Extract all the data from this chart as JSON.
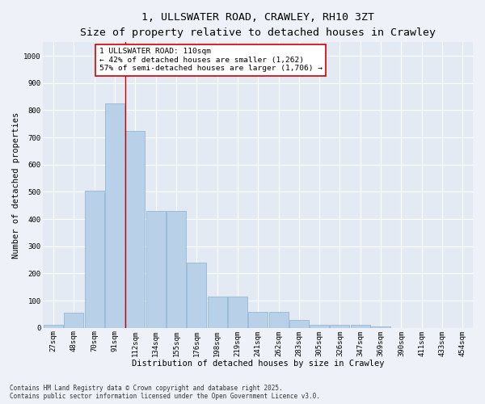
{
  "title_line1": "1, ULLSWATER ROAD, CRAWLEY, RH10 3ZT",
  "title_line2": "Size of property relative to detached houses in Crawley",
  "xlabel": "Distribution of detached houses by size in Crawley",
  "ylabel": "Number of detached properties",
  "categories": [
    "27sqm",
    "48sqm",
    "70sqm",
    "91sqm",
    "112sqm",
    "134sqm",
    "155sqm",
    "176sqm",
    "198sqm",
    "219sqm",
    "241sqm",
    "262sqm",
    "283sqm",
    "305sqm",
    "326sqm",
    "347sqm",
    "369sqm",
    "390sqm",
    "411sqm",
    "433sqm",
    "454sqm"
  ],
  "values": [
    10,
    55,
    505,
    825,
    725,
    430,
    430,
    240,
    115,
    115,
    60,
    60,
    30,
    10,
    10,
    10,
    5,
    0,
    0,
    0,
    0
  ],
  "bar_color": "#b8d0e8",
  "bar_edge_color": "#8ab0d0",
  "vline_position": 3.5,
  "vline_color": "#cc0000",
  "annotation_text": "1 ULLSWATER ROAD: 110sqm\n← 42% of detached houses are smaller (1,262)\n57% of semi-detached houses are larger (1,706) →",
  "annotation_box_color": "#ffffff",
  "annotation_box_edge": "#cc0000",
  "ylim": [
    0,
    1050
  ],
  "yticks": [
    0,
    100,
    200,
    300,
    400,
    500,
    600,
    700,
    800,
    900,
    1000
  ],
  "footer_text": "Contains HM Land Registry data © Crown copyright and database right 2025.\nContains public sector information licensed under the Open Government Licence v3.0.",
  "background_color": "#eef2f8",
  "plot_background": "#e4eaf4",
  "grid_color": "#ffffff",
  "title_fontsize": 9.5,
  "subtitle_fontsize": 8.5,
  "axis_label_fontsize": 7.5,
  "tick_fontsize": 6.5,
  "annot_fontsize": 6.8,
  "footer_fontsize": 5.5
}
